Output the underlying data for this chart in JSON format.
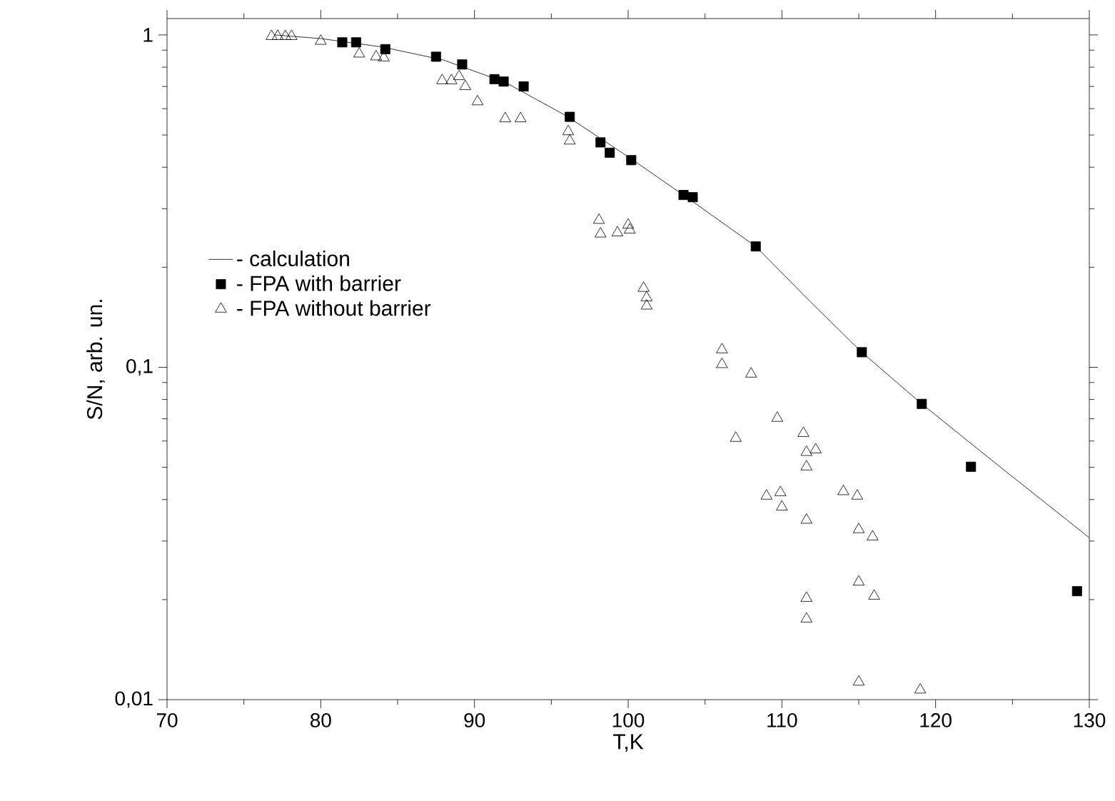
{
  "chart_data": {
    "type": "scatter",
    "xlabel": "T,K",
    "ylabel": "S/N, arb. un.",
    "xlim": [
      70,
      130
    ],
    "xticks": [
      70,
      80,
      90,
      100,
      110,
      120,
      130
    ],
    "ylim": [
      0.01,
      1.12
    ],
    "yticks": [
      {
        "value": 1,
        "label": "1"
      },
      {
        "value": 0.1,
        "label": "0,1"
      },
      {
        "value": 0.01,
        "label": "0,01"
      }
    ],
    "log": "y",
    "legend": "left",
    "grid": false,
    "series": [
      {
        "name": "- calculation",
        "type": "line",
        "color": "#000000",
        "marker": "none",
        "line_style": "solid",
        "x": [
          77,
          80,
          84,
          88,
          92,
          96,
          100,
          104,
          108.3,
          112,
          115.2,
          119.1,
          124,
          130
        ],
        "values": [
          1.0,
          0.975,
          0.92,
          0.84,
          0.72,
          0.57,
          0.43,
          0.32,
          0.231,
          0.155,
          0.111,
          0.0776,
          0.051,
          0.0307
        ]
      },
      {
        "name": "- FPA with barrier",
        "color": "#000000",
        "marker": "square",
        "x": [
          81.4,
          82.3,
          84.2,
          87.5,
          89.2,
          91.3,
          91.9,
          93.2,
          96.2,
          98.2,
          98.8,
          100.2,
          103.6,
          104.2,
          108.3,
          115.2,
          119.1,
          122.3,
          129.2
        ],
        "values": [
          0.95,
          0.95,
          0.906,
          0.86,
          0.815,
          0.736,
          0.724,
          0.7,
          0.567,
          0.475,
          0.442,
          0.42,
          0.33,
          0.325,
          0.231,
          0.111,
          0.0776,
          0.0502,
          0.0212
        ]
      },
      {
        "name": "- FPA without barrier",
        "color": "#000000",
        "marker": "triangle",
        "x": [
          76.8,
          77.2,
          77.7,
          78.1,
          80.0,
          82.5,
          83.6,
          84.1,
          87.9,
          88.5,
          89.0,
          89.4,
          90.2,
          92.0,
          93.0,
          96.1,
          96.2,
          98.1,
          98.2,
          99.3,
          100.0,
          100.1,
          101.0,
          101.2,
          101.2,
          106.1,
          106.1,
          108.0,
          109.7,
          107.0,
          111.4,
          111.6,
          112.2,
          111.6,
          109.0,
          109.9,
          110.0,
          111.6,
          114.0,
          114.9,
          115.0,
          115.9,
          115.0,
          116.0,
          111.6,
          111.6,
          115.0,
          119.0
        ],
        "values": [
          0.99,
          0.99,
          0.99,
          0.99,
          0.958,
          0.877,
          0.86,
          0.854,
          0.729,
          0.729,
          0.75,
          0.7,
          0.63,
          0.56,
          0.56,
          0.512,
          0.48,
          0.277,
          0.252,
          0.254,
          0.268,
          0.259,
          0.173,
          0.162,
          0.153,
          0.113,
          0.102,
          0.0955,
          0.0703,
          0.0612,
          0.0633,
          0.0555,
          0.0565,
          0.0502,
          0.041,
          0.042,
          0.038,
          0.0347,
          0.0423,
          0.041,
          0.0325,
          0.0309,
          0.0226,
          0.0205,
          0.0202,
          0.0175,
          0.0113,
          0.0107
        ]
      }
    ]
  }
}
